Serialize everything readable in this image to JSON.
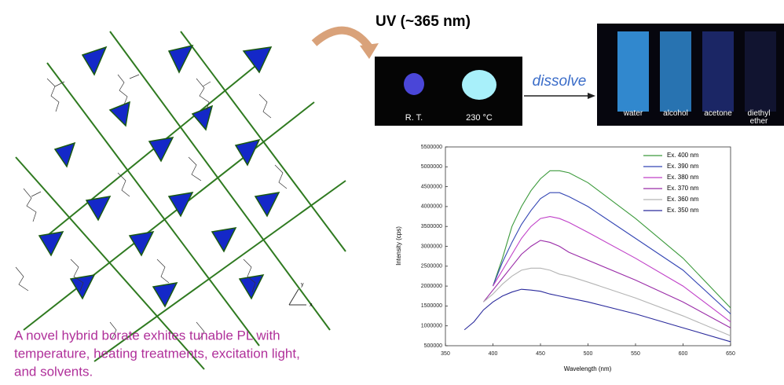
{
  "header": {
    "uv": "UV (~365 nm)",
    "dissolve": "dissolve"
  },
  "photos": {
    "labels": [
      "R. T.",
      "230 °C"
    ]
  },
  "solvents": [
    "water",
    "alcohol",
    "acetone",
    "diethyl ether"
  ],
  "axes_symbol": [
    "y",
    "x"
  ],
  "caption": [
    "A novel hybrid borate exhites tunable PL with",
    "temperature, heating treatments, excitation light,",
    "and solvents."
  ],
  "chart_data": {
    "type": "line",
    "xlabel": "Wavelength (nm)",
    "ylabel": "Intensity (cps)",
    "x": [
      370,
      380,
      390,
      400,
      410,
      420,
      430,
      440,
      450,
      460,
      470,
      480,
      500,
      550,
      600,
      650
    ],
    "xlim": [
      350,
      650
    ],
    "xticks": [
      350,
      400,
      450,
      500,
      550,
      600,
      650
    ],
    "ylim": [
      500000,
      5500000
    ],
    "yticks": [
      500000,
      1000000,
      1500000,
      2000000,
      2500000,
      3000000,
      3500000,
      4000000,
      4500000,
      5000000,
      5500000
    ],
    "legend": "upper right",
    "series": [
      {
        "name": "Ex. 400 nm",
        "color": "#3c9a3c",
        "values": [
          null,
          null,
          null,
          2000000,
          2700000,
          3500000,
          4000000,
          4400000,
          4700000,
          4900000,
          4900000,
          4850000,
          4600000,
          3700000,
          2700000,
          1450000
        ]
      },
      {
        "name": "Ex. 390 nm",
        "color": "#3446b4",
        "values": [
          null,
          null,
          null,
          2000000,
          2600000,
          3100000,
          3550000,
          3900000,
          4200000,
          4350000,
          4350000,
          4250000,
          4000000,
          3200000,
          2400000,
          1300000
        ]
      },
      {
        "name": "Ex. 380 nm",
        "color": "#c040c8",
        "values": [
          null,
          null,
          null,
          2000000,
          2400000,
          2800000,
          3200000,
          3500000,
          3700000,
          3750000,
          3700000,
          3600000,
          3350000,
          2700000,
          2000000,
          1100000
        ]
      },
      {
        "name": "Ex. 370 nm",
        "color": "#9a2ca8",
        "values": [
          null,
          null,
          1600000,
          1900000,
          2200000,
          2500000,
          2800000,
          3000000,
          3150000,
          3100000,
          3000000,
          2850000,
          2650000,
          2150000,
          1600000,
          950000
        ]
      },
      {
        "name": "Ex. 360 nm",
        "color": "#b4b4b4",
        "values": [
          null,
          null,
          1600000,
          1800000,
          2050000,
          2250000,
          2400000,
          2450000,
          2450000,
          2400000,
          2300000,
          2250000,
          2100000,
          1700000,
          1250000,
          750000
        ]
      },
      {
        "name": "Ex. 350 nm",
        "color": "#2a2a9c",
        "values": [
          900000,
          1100000,
          1400000,
          1600000,
          1750000,
          1850000,
          1920000,
          1900000,
          1870000,
          1800000,
          1750000,
          1700000,
          1600000,
          1300000,
          950000,
          600000
        ]
      }
    ]
  }
}
